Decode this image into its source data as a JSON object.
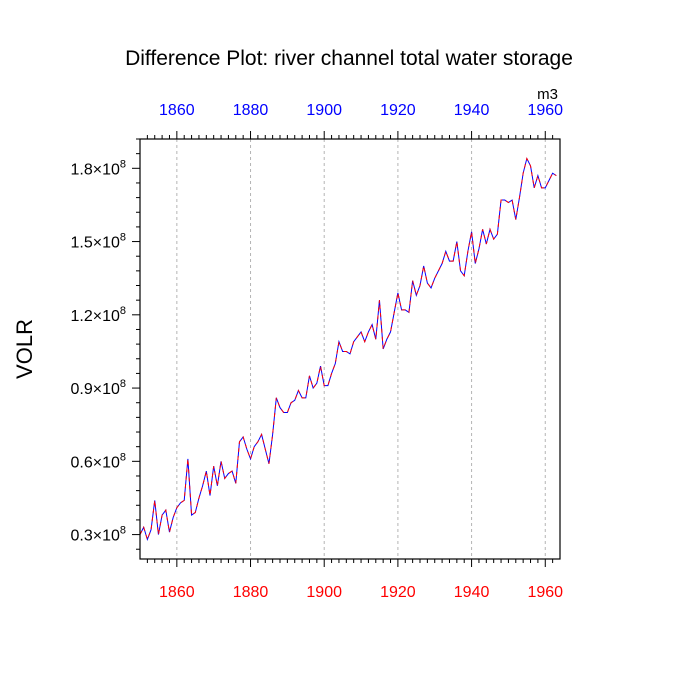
{
  "chart_data": {
    "type": "line",
    "title": "Difference Plot: river channel total water storage",
    "units_label": "m3",
    "ylabel": "VOLR",
    "xlabel": "",
    "xlim": [
      1850,
      1964
    ],
    "ylim": [
      20000000,
      192000000
    ],
    "x_ticks": [
      1860,
      1880,
      1900,
      1920,
      1940,
      1960
    ],
    "x_tick_labels": [
      "1860",
      "1880",
      "1900",
      "1920",
      "1940",
      "1960"
    ],
    "top_tick_color": "#0000ff",
    "bottom_tick_color": "#ff0000",
    "y_ticks": [
      {
        "value": 30000000,
        "mantissa": "0.3",
        "base": "×10",
        "exponent": "8"
      },
      {
        "value": 60000000,
        "mantissa": "0.6",
        "base": "×10",
        "exponent": "8"
      },
      {
        "value": 90000000,
        "mantissa": "0.9",
        "base": "×10",
        "exponent": "8"
      },
      {
        "value": 120000000,
        "mantissa": "1.2",
        "base": "×10",
        "exponent": "8"
      },
      {
        "value": 150000000,
        "mantissa": "1.5",
        "base": "×10",
        "exponent": "8"
      },
      {
        "value": 180000000,
        "mantissa": "1.8",
        "base": "×10",
        "exponent": "8"
      }
    ],
    "grid": "vertical dashed",
    "series": [
      {
        "name": "VOLR difference",
        "colors": [
          "#0000ff",
          "#ff0000"
        ],
        "style": "dashed overlay",
        "x": [
          1850,
          1851,
          1852,
          1853,
          1854,
          1855,
          1856,
          1857,
          1858,
          1859,
          1860,
          1861,
          1862,
          1863,
          1864,
          1865,
          1866,
          1867,
          1868,
          1869,
          1870,
          1871,
          1872,
          1873,
          1874,
          1875,
          1876,
          1877,
          1878,
          1879,
          1880,
          1881,
          1882,
          1883,
          1884,
          1885,
          1886,
          1887,
          1888,
          1889,
          1890,
          1891,
          1892,
          1893,
          1894,
          1895,
          1896,
          1897,
          1898,
          1899,
          1900,
          1901,
          1902,
          1903,
          1904,
          1905,
          1906,
          1907,
          1908,
          1909,
          1910,
          1911,
          1912,
          1913,
          1914,
          1915,
          1916,
          1917,
          1918,
          1919,
          1920,
          1921,
          1922,
          1923,
          1924,
          1925,
          1926,
          1927,
          1928,
          1929,
          1930,
          1931,
          1932,
          1933,
          1934,
          1935,
          1936,
          1937,
          1938,
          1939,
          1940,
          1941,
          1942,
          1943,
          1944,
          1945,
          1946,
          1947,
          1948,
          1949,
          1950,
          1951,
          1952,
          1953,
          1954,
          1955,
          1956,
          1957,
          1958,
          1959,
          1960,
          1961,
          1962,
          1963
        ],
        "values": [
          30,
          33,
          28,
          32,
          44,
          30,
          38,
          40,
          31,
          37,
          41,
          43,
          44,
          61,
          38,
          39,
          45,
          50,
          56,
          46,
          58,
          50,
          60,
          53,
          55,
          56,
          51,
          68,
          70,
          65,
          61,
          66,
          68,
          71,
          65,
          59,
          71,
          86,
          82,
          80,
          80,
          84,
          85,
          89,
          86,
          86,
          95,
          90,
          92,
          99,
          91,
          91,
          96,
          100,
          109,
          105,
          105,
          104,
          109,
          111,
          113,
          109,
          113,
          116,
          110,
          126,
          106,
          110,
          113,
          121,
          129,
          122,
          122,
          121,
          134,
          128,
          132,
          140,
          133,
          131,
          135,
          138,
          141,
          146,
          142,
          142,
          150,
          138,
          136,
          146,
          154,
          141,
          147,
          155,
          149,
          155,
          151,
          153,
          167,
          167,
          166,
          167,
          159,
          168,
          178,
          184,
          181,
          172,
          177,
          172,
          172,
          175,
          178,
          177
        ]
      }
    ]
  }
}
